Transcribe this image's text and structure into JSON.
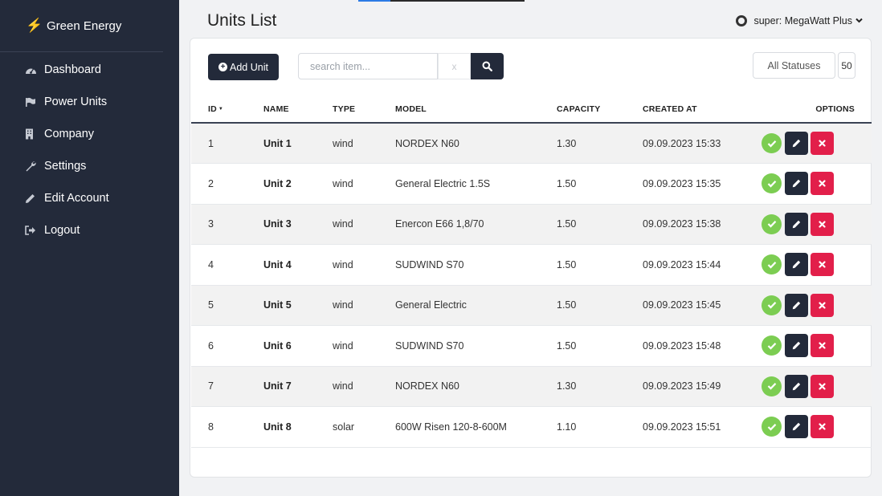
{
  "sidebar": {
    "brand": "Green Energy",
    "items": [
      {
        "label": "Dashboard",
        "icon": "dashboard-icon"
      },
      {
        "label": "Power Units",
        "icon": "flag-icon"
      },
      {
        "label": "Company",
        "icon": "building-icon"
      },
      {
        "label": "Settings",
        "icon": "wrench-icon"
      },
      {
        "label": "Edit Account",
        "icon": "pencil-icon"
      },
      {
        "label": "Logout",
        "icon": "logout-icon"
      }
    ]
  },
  "header": {
    "title": "Units List",
    "user": "super: MegaWatt Plus"
  },
  "toolbar": {
    "add_label": "Add Unit",
    "search_placeholder": "search item...",
    "clear_label": "x",
    "status_filter": "All Statuses",
    "page_size": "50"
  },
  "table": {
    "columns": {
      "id": "ID",
      "name": "NAME",
      "type": "TYPE",
      "model": "MODEL",
      "capacity": "CAPACITY",
      "created": "CREATED AT",
      "options": "OPTIONS"
    },
    "rows": [
      {
        "id": "1",
        "name": "Unit 1",
        "type": "wind",
        "model": "NORDEX N60",
        "capacity": "1.30",
        "created": "09.09.2023 15:33"
      },
      {
        "id": "2",
        "name": "Unit 2",
        "type": "wind",
        "model": "General Electric 1.5S",
        "capacity": "1.50",
        "created": "09.09.2023 15:35"
      },
      {
        "id": "3",
        "name": "Unit 3",
        "type": "wind",
        "model": "Enercon E66 1,8/70",
        "capacity": "1.50",
        "created": "09.09.2023 15:38"
      },
      {
        "id": "4",
        "name": "Unit 4",
        "type": "wind",
        "model": "SUDWIND S70",
        "capacity": "1.50",
        "created": "09.09.2023 15:44"
      },
      {
        "id": "5",
        "name": "Unit 5",
        "type": "wind",
        "model": "General Electric",
        "capacity": "1.50",
        "created": "09.09.2023 15:45"
      },
      {
        "id": "6",
        "name": "Unit 6",
        "type": "wind",
        "model": "SUDWIND S70",
        "capacity": "1.50",
        "created": "09.09.2023 15:48"
      },
      {
        "id": "7",
        "name": "Unit 7",
        "type": "wind",
        "model": "NORDEX N60",
        "capacity": "1.30",
        "created": "09.09.2023 15:49"
      },
      {
        "id": "8",
        "name": "Unit 8",
        "type": "solar",
        "model": "600W Risen 120-8-600M",
        "capacity": "1.10",
        "created": "09.09.2023 15:51"
      }
    ]
  },
  "colors": {
    "sidebar_bg": "#232a3a",
    "accept": "#7ccd52",
    "delete": "#e21f4a",
    "brand_bolt": "#f5a623"
  }
}
